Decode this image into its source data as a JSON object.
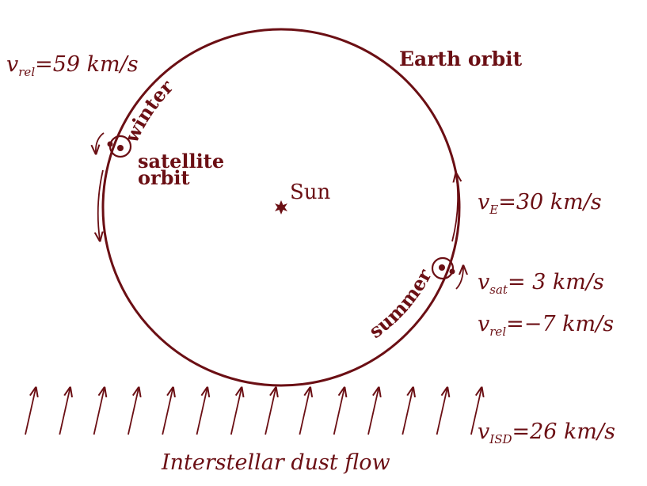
{
  "colors": {
    "ink": "#6b0f14",
    "background": "#ffffff"
  },
  "labels": {
    "earth_orbit": "Earth orbit",
    "sun": "Sun",
    "satellite_orbit_line1": "satellite",
    "satellite_orbit_line2": "orbit",
    "winter": "winter",
    "summer": "summer",
    "interstellar_flow": "Interstellar dust flow"
  },
  "velocities": {
    "winter_rel": {
      "sym": "v",
      "sub": "rel",
      "value": "=59 km/s"
    },
    "earth": {
      "sym": "v",
      "sub": "E",
      "value": "=30 km/s"
    },
    "sat": {
      "sym": "v",
      "sub": "sat",
      "value": "= 3 km/s"
    },
    "summer_rel": {
      "sym": "v",
      "sub": "rel",
      "value": "=−7 km/s"
    },
    "isd": {
      "sym": "v",
      "sub": "ISD",
      "value": "=26 km/s"
    }
  },
  "icons": {
    "sun": "star-burst-icon",
    "satellite": "circle-dot-icon",
    "flow_arrow": "arrow-up-right-icon"
  },
  "flow_arrow_count": 14
}
